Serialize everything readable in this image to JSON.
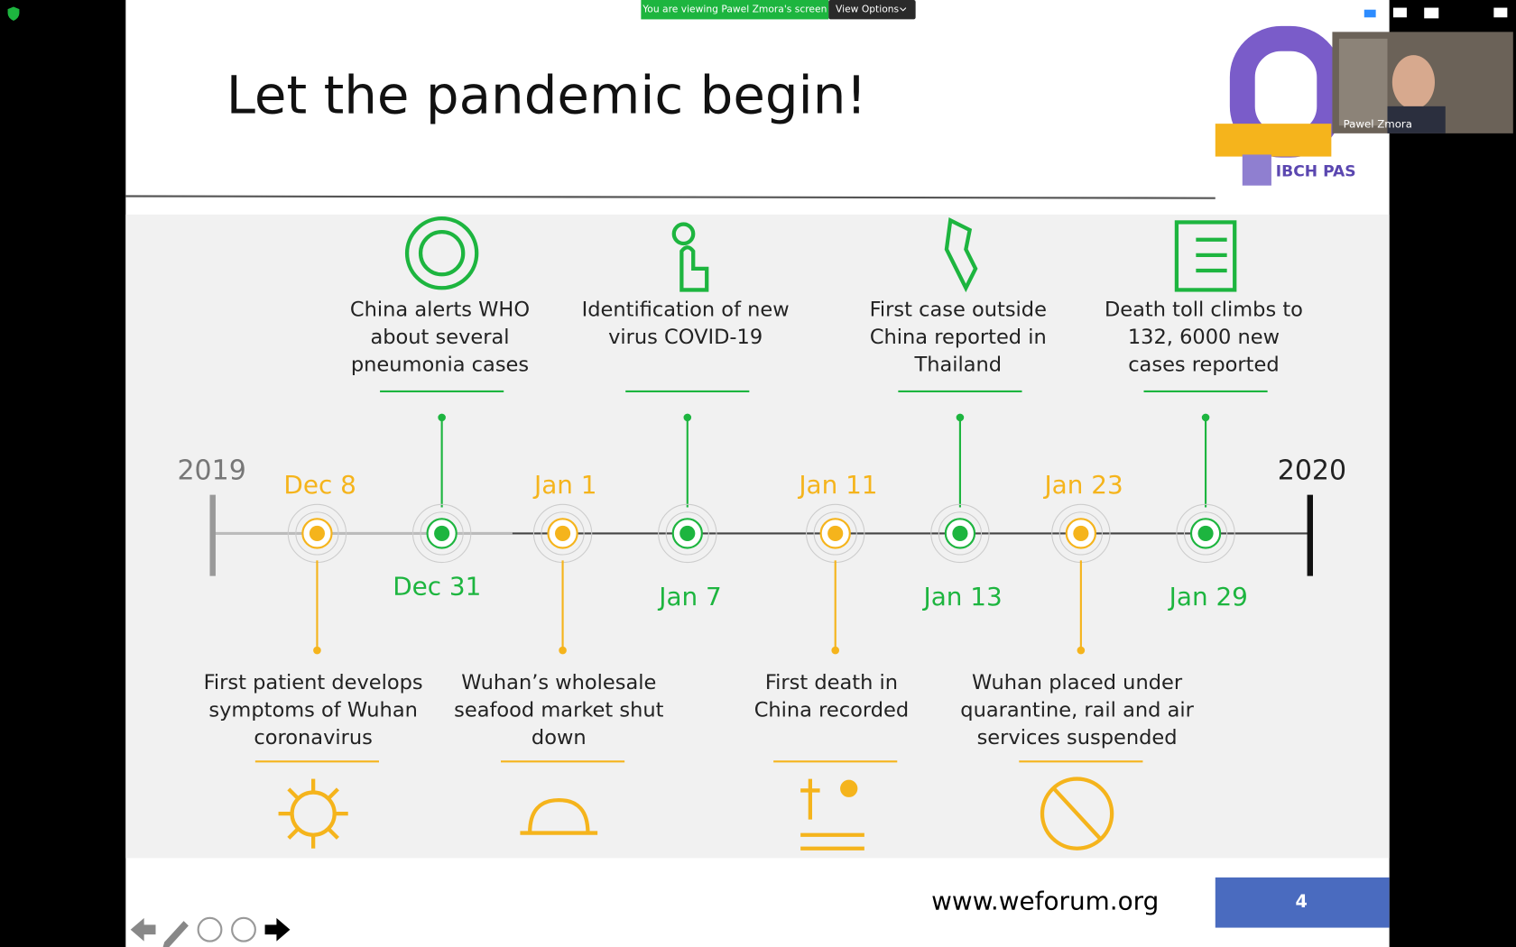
{
  "zoom": {
    "banner": "You are viewing Pawel Zmora's screen",
    "view_options": "View Options",
    "participant": "Pawel Zmora"
  },
  "slide": {
    "title": "Let the pandemic begin!",
    "logo": "IBCH PAS",
    "start_year": "2019",
    "end_year": "2020",
    "events_top": [
      {
        "date": "Dec 31",
        "text": [
          "China alerts WHO",
          "about several",
          "pneumonia cases"
        ]
      },
      {
        "date": "Jan 7",
        "text": [
          "Identification of new",
          "virus COVID-19"
        ]
      },
      {
        "date": "Jan 13",
        "text": [
          "First case outside",
          "China reported in",
          "Thailand"
        ]
      },
      {
        "date": "Jan 29",
        "text": [
          "Death toll climbs to",
          "132, 6000 new",
          "cases reported"
        ]
      }
    ],
    "events_bottom": [
      {
        "date": "Dec 8",
        "text": [
          "First patient develops",
          "symptoms of Wuhan",
          "coronavirus"
        ]
      },
      {
        "date": "Jan 1",
        "text": [
          "Wuhan’s wholesale",
          "seafood market shut",
          "down"
        ]
      },
      {
        "date": "Jan 11",
        "text": [
          "First death in",
          "China recorded"
        ]
      },
      {
        "date": "Jan 23",
        "text": [
          "Wuhan placed under",
          "quarantine, rail and air",
          "services suspended"
        ]
      }
    ],
    "source": "www.weforum.org",
    "page": "4"
  }
}
